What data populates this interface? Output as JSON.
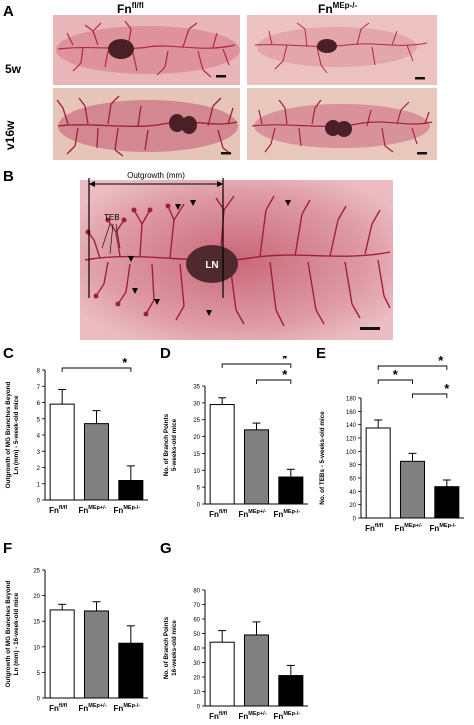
{
  "panelA": {
    "letter": "A",
    "col1_base": "Fn",
    "col1_sup": "fl/fl",
    "col2_base": "Fn",
    "col2_sup": "MEp-/-",
    "row1": "5w",
    "row2": "v16w"
  },
  "panelB": {
    "letter": "B",
    "outgrowth_label": "Outgrowth (mm)",
    "teb_label": "TEB",
    "ln_label": "LN"
  },
  "chart_data": [
    {
      "panel": "C",
      "type": "bar",
      "categories": [
        {
          "base": "Fn",
          "sup": "fl/fl"
        },
        {
          "base": "Fn",
          "sup": "MEp+/-"
        },
        {
          "base": "Fn",
          "sup": "MEp-/-"
        }
      ],
      "values": [
        5.9,
        4.7,
        1.2
      ],
      "errors": [
        0.9,
        0.8,
        0.9
      ],
      "ylabel": [
        "Outgrowth of MG Branches Beyond",
        "Ln (mm) - 5-week-old mice"
      ],
      "ylim": [
        0,
        8
      ],
      "yticks": [
        0,
        1,
        2,
        3,
        4,
        5,
        6,
        7,
        8
      ],
      "significance": [
        {
          "from": 0,
          "to": 2,
          "label": "*"
        }
      ]
    },
    {
      "panel": "D",
      "type": "bar",
      "categories": [
        {
          "base": "Fn",
          "sup": "fl/fl"
        },
        {
          "base": "Fn",
          "sup": "MEp+/-"
        },
        {
          "base": "Fn",
          "sup": "MEp-/-"
        }
      ],
      "values": [
        29.5,
        22,
        8
      ],
      "errors": [
        2,
        2,
        2.3
      ],
      "ylabel": [
        "No. of Branch Points",
        "5-weeks-old mice"
      ],
      "ylim": [
        0,
        35
      ],
      "yticks": [
        0,
        5,
        10,
        15,
        20,
        25,
        30,
        35
      ],
      "significance": [
        {
          "from": 0,
          "to": 2,
          "label": "*"
        },
        {
          "from": 1,
          "to": 2,
          "label": "*"
        }
      ]
    },
    {
      "panel": "E",
      "type": "bar",
      "categories": [
        {
          "base": "Fn",
          "sup": "fl/fl"
        },
        {
          "base": "Fn",
          "sup": "MEp+/-"
        },
        {
          "base": "Fn",
          "sup": "MEp-/-"
        }
      ],
      "values": [
        135,
        85,
        47
      ],
      "errors": [
        12,
        12,
        10
      ],
      "ylabel": [
        "No. of TEBs - 5-weeks-old mice"
      ],
      "ylim": [
        0,
        180
      ],
      "yticks": [
        0,
        20,
        40,
        60,
        80,
        100,
        120,
        140,
        160,
        180
      ],
      "significance": [
        {
          "from": 0,
          "to": 2,
          "label": "*"
        },
        {
          "from": 0,
          "to": 1,
          "label": "*"
        },
        {
          "from": 1,
          "to": 2,
          "label": "*"
        }
      ]
    },
    {
      "panel": "F",
      "type": "bar",
      "categories": [
        {
          "base": "Fn",
          "sup": "fl/fl"
        },
        {
          "base": "Fn",
          "sup": "MEp+/-"
        },
        {
          "base": "Fn",
          "sup": "MEp-/-"
        }
      ],
      "values": [
        17.2,
        17,
        10.7
      ],
      "errors": [
        1.1,
        1.8,
        3.4
      ],
      "ylabel": [
        "Outgrowth of MG Branches Beyond",
        "Ln (mm) - 16-week-old mice"
      ],
      "ylim": [
        0,
        25
      ],
      "yticks": [
        0,
        5,
        10,
        15,
        20,
        25
      ],
      "significance": []
    },
    {
      "panel": "G",
      "type": "bar",
      "categories": [
        {
          "base": "Fn",
          "sup": "fl/fl"
        },
        {
          "base": "Fn",
          "sup": "MEp+/-"
        },
        {
          "base": "Fn",
          "sup": "MEp-/-"
        }
      ],
      "values": [
        44,
        49,
        21
      ],
      "errors": [
        8,
        9,
        7
      ],
      "ylabel": [
        "No. of Branch Points",
        "16-weeks-old mice"
      ],
      "ylim": [
        0,
        80
      ],
      "yticks": [
        0,
        10,
        20,
        30,
        40,
        50,
        60,
        70,
        80
      ],
      "significance": []
    }
  ],
  "colors": {
    "bar_fills": [
      "#ffffff",
      "#808080",
      "#000000"
    ],
    "tissue_bg": "#e2a8b0",
    "tissue_branch": "#b0243f",
    "lymph_node": "#5c2a30"
  }
}
